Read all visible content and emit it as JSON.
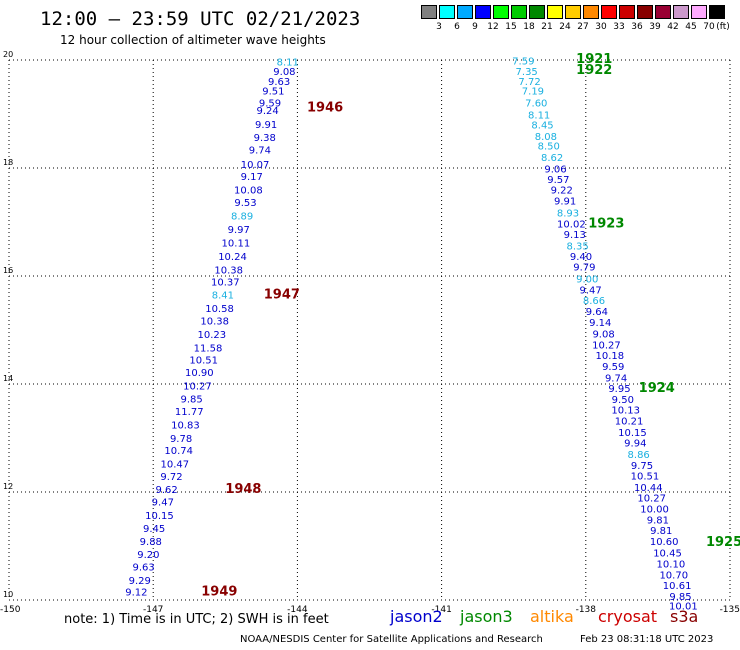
{
  "header": {
    "title": "12:00 — 23:59 UTC 02/21/2023",
    "subtitle": "12 hour collection of altimeter wave heights"
  },
  "colorbar": {
    "unit": "(ft)",
    "colors": [
      "#808080",
      "#00ffff",
      "#00aaff",
      "#0000ff",
      "#00ff00",
      "#00cc00",
      "#008800",
      "#ffff00",
      "#ffcc00",
      "#ff8800",
      "#ff0000",
      "#cc0000",
      "#880000",
      "#990033",
      "#cc99cc",
      "#ffaaff",
      "#000000"
    ],
    "labels": [
      "3",
      "6",
      "9",
      "12",
      "15",
      "18",
      "21",
      "24",
      "27",
      "30",
      "33",
      "36",
      "39",
      "42",
      "45",
      "70"
    ]
  },
  "chart_data": {
    "type": "scatter",
    "xlim": [
      -150,
      -135
    ],
    "ylim": [
      10,
      20
    ],
    "x_ticks": [
      "-150",
      "-147",
      "-144",
      "-141",
      "-138",
      "-135"
    ],
    "y_ticks": [
      "20",
      "18",
      "16",
      "14",
      "12",
      "10"
    ],
    "x_tick_values": [
      -150,
      -147,
      -144,
      -141,
      -138,
      -135
    ],
    "y_tick_values": [
      20,
      18,
      16,
      14,
      12,
      10
    ],
    "grid": "dotted",
    "left_pass_values": [
      "8.11",
      "9.08",
      "9.63",
      "9.51",
      "9.59",
      "9.24",
      "9.91",
      "9.38",
      "9.74",
      "10.07",
      "9.17",
      "10.08",
      "9.53",
      "8.89",
      "9.97",
      "10.11",
      "10.24",
      "10.38",
      "10.37",
      "8.41",
      "10.58",
      "10.38",
      "10.23",
      "11.58",
      "10.51",
      "10.90",
      "10.27",
      "9.85",
      "11.77",
      "10.83",
      "9.78",
      "10.74",
      "10.47",
      "9.72",
      "9.62",
      "9.47",
      "10.15",
      "9.45",
      "9.88",
      "9.20",
      "9.63",
      "9.29",
      "9.12"
    ],
    "left_pass_lat": [
      19.9,
      19.72,
      19.54,
      19.36,
      19.14,
      19.0,
      18.74,
      18.5,
      18.27,
      18.0,
      17.78,
      17.53,
      17.3,
      17.05,
      16.8,
      16.55,
      16.3,
      16.05,
      15.82,
      15.58,
      15.33,
      15.1,
      14.85,
      14.6,
      14.38,
      14.15,
      13.9,
      13.66,
      13.43,
      13.18,
      12.93,
      12.7,
      12.45,
      12.22,
      11.98,
      11.75,
      11.5,
      11.26,
      11.02,
      10.78,
      10.55,
      10.3,
      10.08
    ],
    "left_pass_lon": [
      -144.2,
      -144.27,
      -144.38,
      -144.5,
      -144.57,
      -144.62,
      -144.65,
      -144.68,
      -144.78,
      -144.88,
      -144.95,
      -145.02,
      -145.08,
      -145.15,
      -145.22,
      -145.28,
      -145.35,
      -145.43,
      -145.5,
      -145.55,
      -145.62,
      -145.72,
      -145.78,
      -145.86,
      -145.95,
      -146.04,
      -146.08,
      -146.2,
      -146.25,
      -146.33,
      -146.42,
      -146.47,
      -146.55,
      -146.62,
      -146.72,
      -146.8,
      -146.87,
      -146.98,
      -147.05,
      -147.1,
      -147.2,
      -147.28,
      -147.35
    ],
    "left_pass_color": [
      "cyan",
      "blue",
      "blue",
      "blue",
      "blue",
      "blue",
      "blue",
      "blue",
      "blue",
      "blue",
      "blue",
      "blue",
      "blue",
      "cyan",
      "blue",
      "blue",
      "blue",
      "blue",
      "blue",
      "cyan",
      "blue",
      "blue",
      "blue",
      "blue",
      "blue",
      "blue",
      "blue",
      "blue",
      "blue",
      "blue",
      "blue",
      "blue",
      "blue",
      "blue",
      "blue",
      "blue",
      "blue",
      "blue",
      "blue",
      "blue",
      "blue",
      "blue",
      "blue"
    ],
    "right_pass_values": [
      "7.59",
      "7.35",
      "7.72",
      "7.19",
      "7.60",
      "8.11",
      "8.45",
      "8.08",
      "8.50",
      "8.62",
      "9.06",
      "9.57",
      "9.22",
      "9.91",
      "8.93",
      "10.02",
      "9.13",
      "8.35",
      "9.40",
      "9.79",
      "9.00",
      "9.47",
      "8.66",
      "9.64",
      "9.14",
      "9.08",
      "10.27",
      "10.18",
      "9.59",
      "9.74",
      "9.95",
      "9.50",
      "10.13",
      "10.21",
      "10.15",
      "9.94",
      "8.86",
      "9.75",
      "10.51",
      "10.44",
      "10.27",
      "10.00",
      "9.81",
      "9.81",
      "10.60",
      "10.45",
      "10.10",
      "10.70",
      "10.61",
      "9.85",
      "10.01"
    ],
    "right_pass_lat": [
      19.92,
      19.72,
      19.54,
      19.36,
      19.14,
      18.92,
      18.73,
      18.52,
      18.34,
      18.13,
      17.92,
      17.72,
      17.53,
      17.32,
      17.1,
      16.9,
      16.7,
      16.49,
      16.3,
      16.1,
      15.88,
      15.68,
      15.48,
      15.28,
      15.07,
      14.86,
      14.66,
      14.46,
      14.26,
      14.05,
      13.85,
      13.65,
      13.45,
      13.25,
      13.04,
      12.84,
      12.63,
      12.43,
      12.23,
      12.02,
      11.82,
      11.62,
      11.42,
      11.22,
      11.02,
      10.81,
      10.6,
      10.4,
      10.2,
      10.0,
      9.82
    ],
    "right_pass_lon": [
      -139.3,
      -139.23,
      -139.17,
      -139.1,
      -139.03,
      -138.97,
      -138.9,
      -138.83,
      -138.77,
      -138.7,
      -138.63,
      -138.57,
      -138.5,
      -138.43,
      -138.37,
      -138.3,
      -138.23,
      -138.17,
      -138.1,
      -138.03,
      -137.97,
      -137.9,
      -137.83,
      -137.77,
      -137.7,
      -137.63,
      -137.57,
      -137.5,
      -137.43,
      -137.37,
      -137.3,
      -137.23,
      -137.17,
      -137.1,
      -137.03,
      -136.97,
      -136.9,
      -136.83,
      -136.77,
      -136.7,
      -136.63,
      -136.57,
      -136.5,
      -136.43,
      -136.37,
      -136.3,
      -136.23,
      -136.17,
      -136.1,
      -136.03,
      -135.97
    ],
    "right_pass_color": [
      "cyan",
      "cyan",
      "cyan",
      "cyan",
      "cyan",
      "cyan",
      "cyan",
      "cyan",
      "cyan",
      "cyan",
      "blue",
      "blue",
      "blue",
      "blue",
      "cyan",
      "blue",
      "blue",
      "cyan",
      "blue",
      "blue",
      "cyan",
      "blue",
      "cyan",
      "blue",
      "blue",
      "blue",
      "blue",
      "blue",
      "blue",
      "blue",
      "blue",
      "blue",
      "blue",
      "blue",
      "blue",
      "blue",
      "cyan",
      "blue",
      "blue",
      "blue",
      "blue",
      "blue",
      "blue",
      "blue",
      "blue",
      "blue",
      "blue",
      "blue",
      "blue",
      "blue",
      "blue"
    ],
    "time_labels": [
      {
        "text": "1946",
        "lat": 19.05,
        "lon": -143.8,
        "color": "#880000"
      },
      {
        "text": "1947",
        "lat": 15.58,
        "lon": -144.7,
        "color": "#880000"
      },
      {
        "text": "1948",
        "lat": 11.98,
        "lon": -145.5,
        "color": "#880000"
      },
      {
        "text": "1949",
        "lat": 10.08,
        "lon": -146.0,
        "color": "#880000"
      },
      {
        "text": "1921",
        "lat": 19.94,
        "lon": -138.2,
        "color": "#008800"
      },
      {
        "text": "1922",
        "lat": 19.74,
        "lon": -138.2,
        "color": "#008800"
      },
      {
        "text": "1923",
        "lat": 16.9,
        "lon": -137.95,
        "color": "#008800"
      },
      {
        "text": "1924",
        "lat": 13.85,
        "lon": -136.9,
        "color": "#008800"
      },
      {
        "text": "1925",
        "lat": 11.0,
        "lon": -135.5,
        "color": "#008800"
      }
    ]
  },
  "footer": {
    "note": "note: 1) Time is in UTC; 2) SWH is in feet",
    "satellites": [
      {
        "name": "jason2",
        "color": "#0000cc"
      },
      {
        "name": "jason3",
        "color": "#008800"
      },
      {
        "name": "altika",
        "color": "#ff8800"
      },
      {
        "name": "cryosat",
        "color": "#cc0000"
      },
      {
        "name": "s3a",
        "color": "#880000"
      }
    ],
    "credit": "NOAA/NESDIS Center for Satellite Applications and Research",
    "timestamp": "Feb 23 08:31:18 UTC 2023"
  }
}
